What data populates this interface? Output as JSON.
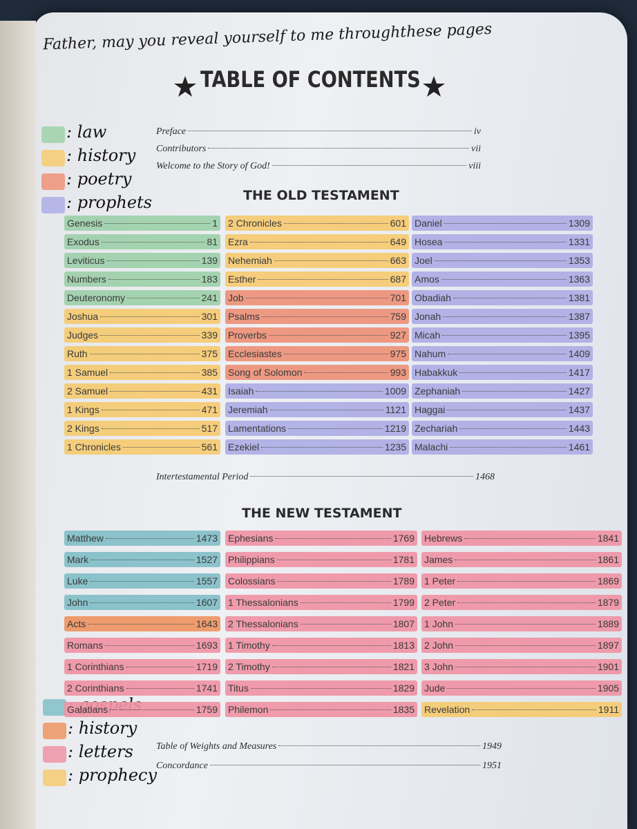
{
  "header": {
    "inscription": "Father, may you reveal yourself to me throughthese pages",
    "title": "TABLE OF CONTENTS"
  },
  "front_matter": [
    {
      "name": "Preface",
      "page": "iv"
    },
    {
      "name": "Contributors",
      "page": "vii"
    },
    {
      "name": "Welcome to the Story of God!",
      "page": "viii"
    }
  ],
  "old_testament": {
    "heading": "THE OLD TESTAMENT",
    "groups": [
      {
        "label": ": law",
        "color": "#9fd1ab",
        "books": [
          {
            "name": "Genesis",
            "page": 1
          },
          {
            "name": "Exodus",
            "page": 81
          },
          {
            "name": "Leviticus",
            "page": 139
          },
          {
            "name": "Numbers",
            "page": 183
          },
          {
            "name": "Deuteronomy",
            "page": 241
          }
        ]
      },
      {
        "label": ": history",
        "color": "#f6cb72",
        "books": [
          {
            "name": "Joshua",
            "page": 301
          },
          {
            "name": "Judges",
            "page": 339
          },
          {
            "name": "Ruth",
            "page": 375
          },
          {
            "name": "1 Samuel",
            "page": 385
          },
          {
            "name": "2 Samuel",
            "page": 431
          },
          {
            "name": "1 Kings",
            "page": 471
          },
          {
            "name": "2 Kings",
            "page": 517
          },
          {
            "name": "1 Chronicles",
            "page": 561
          },
          {
            "name": "2 Chronicles",
            "page": 601
          },
          {
            "name": "Ezra",
            "page": 649
          },
          {
            "name": "Nehemiah",
            "page": 663
          },
          {
            "name": "Esther",
            "page": 687
          }
        ]
      },
      {
        "label": ": poetry",
        "color": "#ee9279",
        "books": [
          {
            "name": "Job",
            "page": 701
          },
          {
            "name": "Psalms",
            "page": 759
          },
          {
            "name": "Proverbs",
            "page": 927
          },
          {
            "name": "Ecclesiastes",
            "page": 975
          },
          {
            "name": "Song of Solomon",
            "page": 993
          }
        ]
      },
      {
        "label": ": prophets",
        "color": "#aeaee6",
        "books": [
          {
            "name": "Isaiah",
            "page": 1009
          },
          {
            "name": "Jeremiah",
            "page": 1121
          },
          {
            "name": "Lamentations",
            "page": 1219
          },
          {
            "name": "Ezekiel",
            "page": 1235
          },
          {
            "name": "Daniel",
            "page": 1309
          },
          {
            "name": "Hosea",
            "page": 1331
          },
          {
            "name": "Joel",
            "page": 1353
          },
          {
            "name": "Amos",
            "page": 1363
          },
          {
            "name": "Obadiah",
            "page": 1381
          },
          {
            "name": "Jonah",
            "page": 1387
          },
          {
            "name": "Micah",
            "page": 1395
          },
          {
            "name": "Nahum",
            "page": 1409
          },
          {
            "name": "Habakkuk",
            "page": 1417
          },
          {
            "name": "Zephaniah",
            "page": 1427
          },
          {
            "name": "Haggai",
            "page": 1437
          },
          {
            "name": "Zechariah",
            "page": 1443
          },
          {
            "name": "Malachi",
            "page": 1461
          }
        ]
      }
    ]
  },
  "intertestamental": {
    "name": "Intertestamental Period",
    "page": 1468
  },
  "new_testament": {
    "heading": "THE NEW TESTAMENT",
    "groups": [
      {
        "label": ": gospels",
        "color": "#83bfc8",
        "books": [
          {
            "name": "Matthew",
            "page": 1473
          },
          {
            "name": "Mark",
            "page": 1527
          },
          {
            "name": "Luke",
            "page": 1557
          },
          {
            "name": "John",
            "page": 1607
          }
        ]
      },
      {
        "label": ": history",
        "color": "#ef9562",
        "books": [
          {
            "name": "Acts",
            "page": 1643
          }
        ]
      },
      {
        "label": ": letters",
        "color": "#f094a6",
        "books": [
          {
            "name": "Romans",
            "page": 1693
          },
          {
            "name": "1 Corinthians",
            "page": 1719
          },
          {
            "name": "2 Corinthians",
            "page": 1741
          },
          {
            "name": "Galatians",
            "page": 1759
          },
          {
            "name": "Ephesians",
            "page": 1769
          },
          {
            "name": "Philippians",
            "page": 1781
          },
          {
            "name": "Colossians",
            "page": 1789
          },
          {
            "name": "1 Thessalonians",
            "page": 1799
          },
          {
            "name": "2 Thessalonians",
            "page": 1807
          },
          {
            "name": "1 Timothy",
            "page": 1813
          },
          {
            "name": "2 Timothy",
            "page": 1821
          },
          {
            "name": "Titus",
            "page": 1829
          },
          {
            "name": "Philemon",
            "page": 1835
          },
          {
            "name": "Hebrews",
            "page": 1841
          },
          {
            "name": "James",
            "page": 1861
          },
          {
            "name": "1 Peter",
            "page": 1869
          },
          {
            "name": "2 Peter",
            "page": 1879
          },
          {
            "name": "1 John",
            "page": 1889
          },
          {
            "name": "2 John",
            "page": 1897
          },
          {
            "name": "3 John",
            "page": 1901
          },
          {
            "name": "Jude",
            "page": 1905
          }
        ]
      },
      {
        "label": ": prophecy",
        "color": "#f6cb72",
        "books": [
          {
            "name": "Revelation",
            "page": 1911
          }
        ]
      }
    ]
  },
  "back_matter": [
    {
      "name": "Table of Weights and Measures",
      "page": 1949
    },
    {
      "name": "Concordance",
      "page": 1951
    }
  ]
}
